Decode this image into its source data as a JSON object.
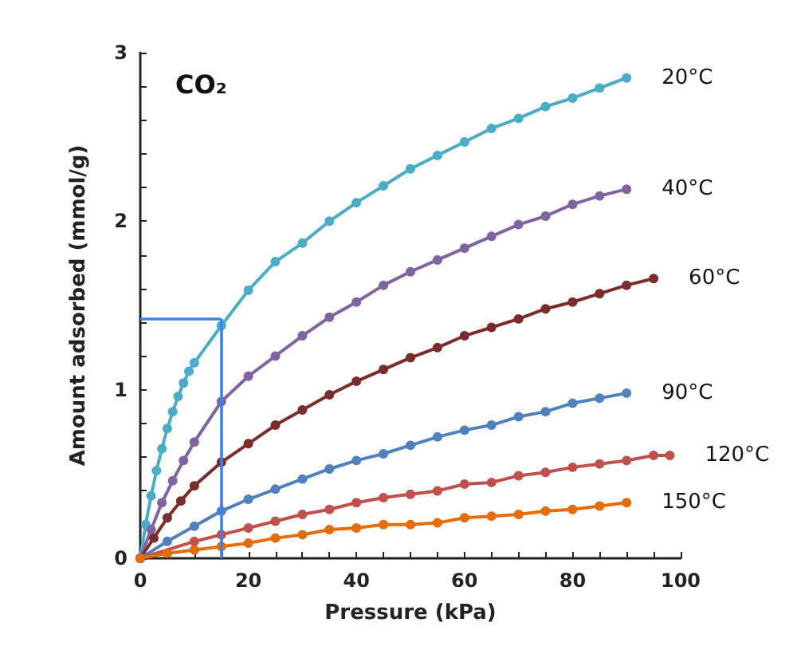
{
  "chart_data": {
    "type": "line",
    "title": "CO₂",
    "xlabel": "Pressure (kPa)",
    "ylabel": "Amount adsorbed (mmol/g)",
    "xlim": [
      0,
      100
    ],
    "xticks": [
      0,
      {
        "value": 5,
        "label": null
      },
      {
        "value": 10,
        "label": null
      },
      {
        "value": 15,
        "label": null
      },
      20,
      {
        "value": 25,
        "label": null
      },
      {
        "value": 30,
        "label": null
      },
      {
        "value": 35,
        "label": null
      },
      40,
      {
        "value": 45,
        "label": null
      },
      {
        "value": 50,
        "label": null
      },
      {
        "value": 55,
        "label": null
      },
      60,
      {
        "value": 65,
        "label": null
      },
      {
        "value": 70,
        "label": null
      },
      {
        "value": 75,
        "label": null
      },
      80,
      {
        "value": 85,
        "label": null
      },
      {
        "value": 90,
        "label": null
      },
      {
        "value": 95,
        "label": null
      },
      100
    ],
    "ylim": [
      0,
      3
    ],
    "yticks": [
      0,
      {
        "value": 0.2,
        "label": null
      },
      {
        "value": 0.4,
        "label": null
      },
      {
        "value": 0.6,
        "label": null
      },
      {
        "value": 0.8,
        "label": null
      },
      1,
      {
        "value": 1.2,
        "label": null
      },
      {
        "value": 1.4,
        "label": null
      },
      {
        "value": 1.6,
        "label": null
      },
      {
        "value": 1.8,
        "label": null
      },
      2,
      {
        "value": 2.2,
        "label": null
      },
      {
        "value": 2.4,
        "label": null
      },
      {
        "value": 2.6,
        "label": null
      },
      {
        "value": 2.8,
        "label": null
      },
      3
    ],
    "grid": false,
    "legend": false,
    "marker": "circle",
    "line_style": "solid",
    "series": [
      {
        "name": "20°C",
        "color": "#4bacc6",
        "x": [
          0,
          1,
          2,
          3,
          4,
          5,
          6,
          7,
          8,
          9,
          10,
          15,
          20,
          25,
          30,
          35,
          40,
          45,
          50,
          55,
          60,
          65,
          70,
          75,
          80,
          85,
          90
        ],
        "values": [
          0,
          0.2,
          0.37,
          0.52,
          0.65,
          0.77,
          0.87,
          0.96,
          1.04,
          1.11,
          1.16,
          1.38,
          1.59,
          1.76,
          1.87,
          2.0,
          2.11,
          2.21,
          2.31,
          2.39,
          2.47,
          2.55,
          2.61,
          2.68,
          2.73,
          2.79,
          2.85
        ]
      },
      {
        "name": "40°C",
        "color": "#8064a2",
        "x": [
          0,
          2,
          4,
          6,
          8,
          10,
          15,
          20,
          25,
          30,
          35,
          40,
          45,
          50,
          55,
          60,
          65,
          70,
          75,
          80,
          85,
          90
        ],
        "values": [
          0,
          0.17,
          0.33,
          0.46,
          0.58,
          0.69,
          0.93,
          1.08,
          1.2,
          1.32,
          1.43,
          1.52,
          1.62,
          1.7,
          1.77,
          1.84,
          1.91,
          1.98,
          2.03,
          2.1,
          2.15,
          2.19
        ]
      },
      {
        "name": "60°C",
        "color": "#7b2c2c",
        "x": [
          0,
          2.5,
          5,
          7.5,
          10,
          15,
          20,
          25,
          30,
          35,
          40,
          45,
          50,
          55,
          60,
          65,
          70,
          75,
          80,
          85,
          90,
          95
        ],
        "values": [
          0,
          0.12,
          0.24,
          0.34,
          0.43,
          0.57,
          0.68,
          0.79,
          0.88,
          0.97,
          1.05,
          1.12,
          1.19,
          1.25,
          1.32,
          1.37,
          1.42,
          1.48,
          1.52,
          1.57,
          1.62,
          1.66
        ]
      },
      {
        "name": "90°C",
        "color": "#4f81bd",
        "x": [
          0,
          5,
          10,
          15,
          20,
          25,
          30,
          35,
          40,
          45,
          50,
          55,
          60,
          65,
          70,
          75,
          80,
          85,
          90
        ],
        "values": [
          0,
          0.1,
          0.19,
          0.28,
          0.35,
          0.41,
          0.47,
          0.53,
          0.58,
          0.62,
          0.67,
          0.72,
          0.76,
          0.79,
          0.84,
          0.87,
          0.92,
          0.95,
          0.98
        ]
      },
      {
        "name": "120°C",
        "color": "#c0504d",
        "x": [
          0,
          10,
          15,
          20,
          25,
          30,
          35,
          40,
          45,
          50,
          55,
          60,
          65,
          70,
          75,
          80,
          85,
          90,
          95,
          98
        ],
        "values": [
          0,
          0.1,
          0.14,
          0.18,
          0.22,
          0.26,
          0.29,
          0.33,
          0.36,
          0.38,
          0.4,
          0.44,
          0.45,
          0.49,
          0.51,
          0.54,
          0.56,
          0.58,
          0.61,
          0.61
        ]
      },
      {
        "name": "150°C",
        "color": "#e46c0a",
        "x": [
          0,
          5,
          10,
          15,
          20,
          25,
          30,
          35,
          40,
          45,
          50,
          55,
          60,
          65,
          70,
          75,
          80,
          85,
          90
        ],
        "values": [
          0,
          0.03,
          0.05,
          0.07,
          0.09,
          0.12,
          0.14,
          0.17,
          0.18,
          0.2,
          0.2,
          0.21,
          0.24,
          0.25,
          0.26,
          0.28,
          0.29,
          0.31,
          0.33
        ]
      }
    ],
    "ref_lines": [
      {
        "axis": "x",
        "value": 15,
        "color": "#3c80f0"
      },
      {
        "axis": "y",
        "value": 1.42,
        "color": "#3c80f0"
      }
    ]
  }
}
